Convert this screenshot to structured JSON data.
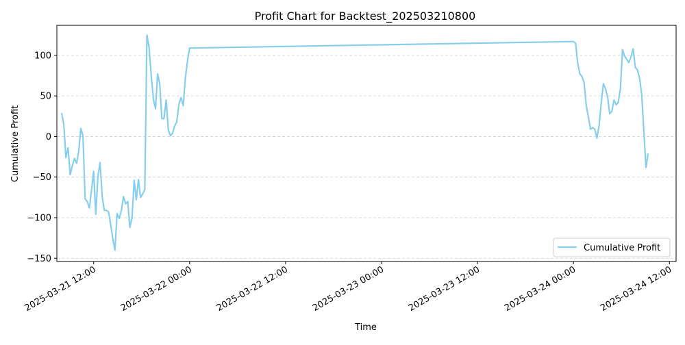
{
  "chart_data": {
    "type": "line",
    "title": "Profit Chart for Backtest_202503210800",
    "xlabel": "Time",
    "ylabel": "Cumulative Profit",
    "xlim": [
      "2025-03-21 07:24",
      "2025-03-24 12:50"
    ],
    "ylim": [
      -154,
      137
    ],
    "x_ticks": [
      "2025-03-21 12:00",
      "2025-03-22 00:00",
      "2025-03-22 12:00",
      "2025-03-23 00:00",
      "2025-03-23 12:00",
      "2025-03-24 00:00",
      "2025-03-24 12:00"
    ],
    "y_ticks": [
      -150,
      -100,
      -50,
      0,
      50,
      100
    ],
    "grid": "horizontal dashed",
    "legend_position": "lower right",
    "series": [
      {
        "name": "Cumulative Profit",
        "color": "#87ceeb",
        "points": [
          [
            "2025-03-21 08:00",
            29
          ],
          [
            "2025-03-21 08:16",
            15
          ],
          [
            "2025-03-21 08:32",
            -26
          ],
          [
            "2025-03-21 08:48",
            -14
          ],
          [
            "2025-03-21 09:04",
            -47
          ],
          [
            "2025-03-21 09:20",
            -36
          ],
          [
            "2025-03-21 09:36",
            -27
          ],
          [
            "2025-03-21 09:52",
            -33
          ],
          [
            "2025-03-21 10:08",
            -18
          ],
          [
            "2025-03-21 10:24",
            10
          ],
          [
            "2025-03-21 10:40",
            1
          ],
          [
            "2025-03-21 10:56",
            -77
          ],
          [
            "2025-03-21 11:12",
            -80
          ],
          [
            "2025-03-21 11:28",
            -88
          ],
          [
            "2025-03-21 11:44",
            -66
          ],
          [
            "2025-03-21 12:00",
            -43
          ],
          [
            "2025-03-21 12:16",
            -96
          ],
          [
            "2025-03-21 12:32",
            -50
          ],
          [
            "2025-03-21 12:48",
            -32
          ],
          [
            "2025-03-21 13:04",
            -74
          ],
          [
            "2025-03-21 13:20",
            -91
          ],
          [
            "2025-03-21 13:36",
            -91
          ],
          [
            "2025-03-21 13:52",
            -93
          ],
          [
            "2025-03-21 14:08",
            -109
          ],
          [
            "2025-03-21 14:24",
            -126
          ],
          [
            "2025-03-21 14:40",
            -140
          ],
          [
            "2025-03-21 14:56",
            -95
          ],
          [
            "2025-03-21 15:12",
            -101
          ],
          [
            "2025-03-21 15:28",
            -91
          ],
          [
            "2025-03-21 15:44",
            -74
          ],
          [
            "2025-03-21 16:00",
            -83
          ],
          [
            "2025-03-21 16:16",
            -80
          ],
          [
            "2025-03-21 16:32",
            -112
          ],
          [
            "2025-03-21 16:48",
            -100
          ],
          [
            "2025-03-21 17:04",
            -54
          ],
          [
            "2025-03-21 17:20",
            -78
          ],
          [
            "2025-03-21 17:36",
            -53
          ],
          [
            "2025-03-21 17:52",
            -75
          ],
          [
            "2025-03-21 18:08",
            -71
          ],
          [
            "2025-03-21 18:24",
            -65
          ],
          [
            "2025-03-21 18:40",
            125
          ],
          [
            "2025-03-21 18:56",
            110
          ],
          [
            "2025-03-21 19:12",
            75
          ],
          [
            "2025-03-21 19:28",
            46
          ],
          [
            "2025-03-21 19:44",
            34
          ],
          [
            "2025-03-21 20:00",
            77
          ],
          [
            "2025-03-21 20:16",
            65
          ],
          [
            "2025-03-21 20:32",
            22
          ],
          [
            "2025-03-21 20:48",
            22
          ],
          [
            "2025-03-21 21:04",
            45
          ],
          [
            "2025-03-21 21:20",
            8
          ],
          [
            "2025-03-21 21:36",
            1
          ],
          [
            "2025-03-21 21:52",
            4
          ],
          [
            "2025-03-21 22:08",
            13
          ],
          [
            "2025-03-21 22:24",
            18
          ],
          [
            "2025-03-21 22:40",
            40
          ],
          [
            "2025-03-21 22:56",
            48
          ],
          [
            "2025-03-21 23:12",
            38
          ],
          [
            "2025-03-21 23:28",
            72
          ],
          [
            "2025-03-21 23:44",
            93
          ],
          [
            "2025-03-22 00:00",
            109
          ],
          [
            "2025-03-24 00:00",
            117
          ],
          [
            "2025-03-24 00:16",
            115
          ],
          [
            "2025-03-24 00:32",
            90
          ],
          [
            "2025-03-24 00:48",
            77
          ],
          [
            "2025-03-24 01:04",
            74
          ],
          [
            "2025-03-24 01:20",
            66
          ],
          [
            "2025-03-24 01:36",
            38
          ],
          [
            "2025-03-24 01:52",
            24
          ],
          [
            "2025-03-24 02:08",
            9
          ],
          [
            "2025-03-24 02:24",
            11
          ],
          [
            "2025-03-24 02:40",
            9
          ],
          [
            "2025-03-24 02:56",
            -2
          ],
          [
            "2025-03-24 03:12",
            13
          ],
          [
            "2025-03-24 03:28",
            40
          ],
          [
            "2025-03-24 03:44",
            65
          ],
          [
            "2025-03-24 04:00",
            59
          ],
          [
            "2025-03-24 04:16",
            49
          ],
          [
            "2025-03-24 04:32",
            28
          ],
          [
            "2025-03-24 04:48",
            31
          ],
          [
            "2025-03-24 05:04",
            45
          ],
          [
            "2025-03-24 05:20",
            39
          ],
          [
            "2025-03-24 05:36",
            42
          ],
          [
            "2025-03-24 05:52",
            59
          ],
          [
            "2025-03-24 06:08",
            107
          ],
          [
            "2025-03-24 06:24",
            99
          ],
          [
            "2025-03-24 06:40",
            95
          ],
          [
            "2025-03-24 06:56",
            91
          ],
          [
            "2025-03-24 07:12",
            98
          ],
          [
            "2025-03-24 07:28",
            108
          ],
          [
            "2025-03-24 07:44",
            85
          ],
          [
            "2025-03-24 08:00",
            82
          ],
          [
            "2025-03-24 08:16",
            72
          ],
          [
            "2025-03-24 08:32",
            52
          ],
          [
            "2025-03-24 08:48",
            7
          ],
          [
            "2025-03-24 09:04",
            -38
          ],
          [
            "2025-03-24 09:20",
            -21
          ]
        ]
      }
    ]
  }
}
